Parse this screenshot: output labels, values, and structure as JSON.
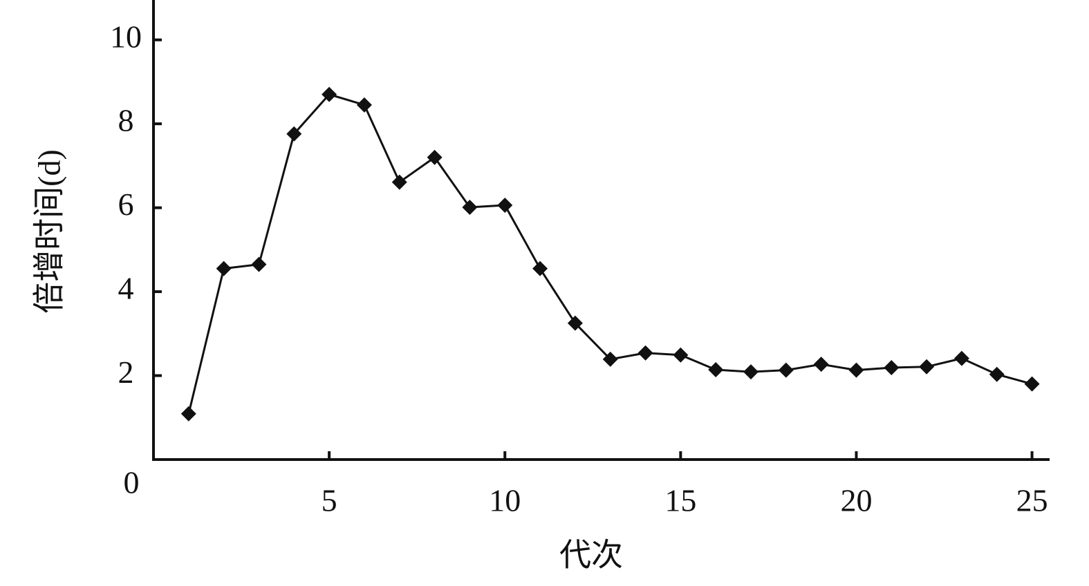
{
  "chart_data": {
    "type": "line",
    "x_label": "代次",
    "y_label": "倍增时间(d)",
    "x": [
      1,
      2,
      3,
      4,
      5,
      6,
      7,
      8,
      9,
      10,
      11,
      12,
      13,
      14,
      15,
      16,
      17,
      18,
      19,
      20,
      21,
      22,
      23,
      24,
      25
    ],
    "series": [
      {
        "color": "#111111",
        "values": [
          1.09,
          4.55,
          4.65,
          7.76,
          8.7,
          8.45,
          6.61,
          7.2,
          6.01,
          6.06,
          4.55,
          3.25,
          2.39,
          2.54,
          2.49,
          2.14,
          2.09,
          2.13,
          2.27,
          2.13,
          2.19,
          2.21,
          2.41,
          2.03,
          1.8
        ]
      }
    ],
    "xlim": [
      0,
      25.5
    ],
    "xticks": [
      5,
      10,
      15,
      20,
      25
    ],
    "ylim": [
      0,
      10.95
    ],
    "yticks": [
      0,
      2,
      4,
      6,
      8,
      10
    ]
  }
}
